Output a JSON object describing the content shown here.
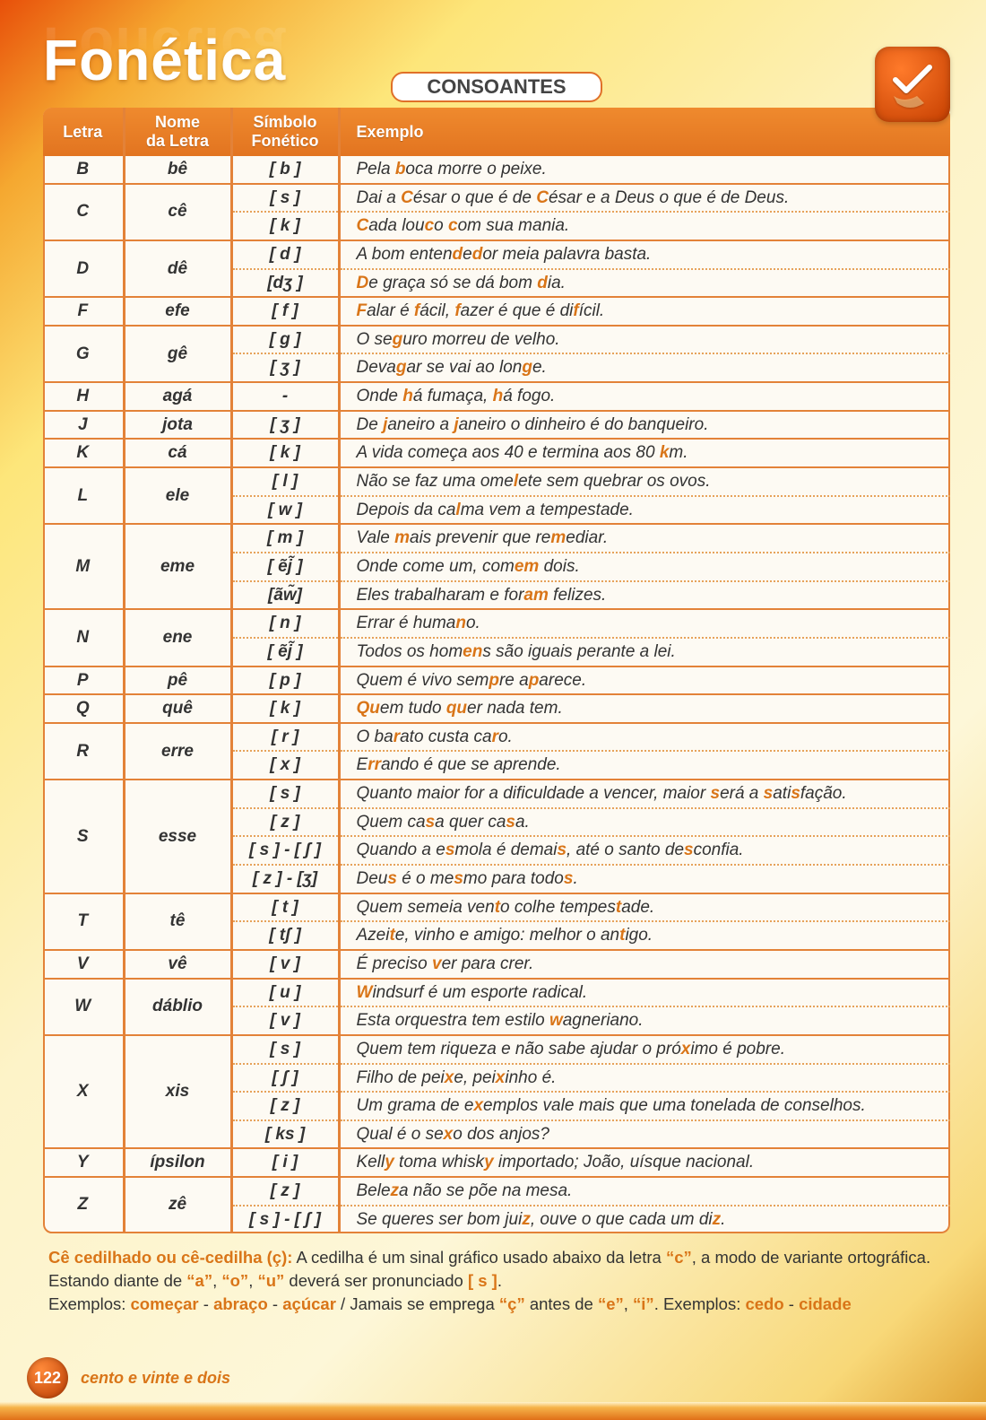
{
  "title": "Fonética",
  "tab": "CONSOANTES",
  "headers": {
    "letra": "Letra",
    "nome": "Nome da Letra",
    "simbolo": "Símbolo Fonético",
    "exemplo": "Exemplo"
  },
  "rows": [
    {
      "letra": "B",
      "nome": "bê",
      "rs": 1,
      "sym": "[ b ]",
      "ex": "Pela <hl>b</hl>oca morre o peixe.",
      "end": "solid"
    },
    {
      "letra": "C",
      "nome": "cê",
      "rs": 2,
      "sym": "[ s ]",
      "ex": "Dai a <hl>C</hl>ésar o que é de <hl>C</hl>ésar e a Deus o que é de Deus.",
      "end": "dashed"
    },
    {
      "sym": "[ k ]",
      "ex": "<hl>C</hl>ada lou<hl>c</hl>o <hl>c</hl>om sua mania.",
      "end": "solid"
    },
    {
      "letra": "D",
      "nome": "dê",
      "rs": 2,
      "sym": "[ d ]",
      "ex": "A bom enten<hl>d</hl>e<hl>d</hl>or meia palavra basta.",
      "end": "dashed"
    },
    {
      "sym": "[dʒ ]",
      "ex": "<hl>D</hl>e graça só se dá bom <hl>d</hl>ia.",
      "end": "solid"
    },
    {
      "letra": "F",
      "nome": "efe",
      "rs": 1,
      "sym": "[ f ]",
      "ex": "<hl>F</hl>alar é <hl>f</hl>ácil, <hl>f</hl>azer é que é di<hl>f</hl>ícil.",
      "end": "solid"
    },
    {
      "letra": "G",
      "nome": "gê",
      "rs": 2,
      "sym": "[ g ]",
      "ex": "O se<hl>g</hl>uro morreu de velho.",
      "end": "dashed"
    },
    {
      "sym": "[ ʒ ]",
      "ex": "Deva<hl>g</hl>ar se vai ao lon<hl>g</hl>e.",
      "end": "solid"
    },
    {
      "letra": "H",
      "nome": "agá",
      "rs": 1,
      "sym": "-",
      "ex": "Onde <hl>h</hl>á fumaça, <hl>h</hl>á fogo.",
      "end": "solid"
    },
    {
      "letra": "J",
      "nome": "jota",
      "rs": 1,
      "sym": "[ ʒ ]",
      "ex": "De <hl>j</hl>aneiro a <hl>j</hl>aneiro o dinheiro é do banqueiro.",
      "end": "solid"
    },
    {
      "letra": "K",
      "nome": "cá",
      "rs": 1,
      "sym": "[ k ]",
      "ex": "A vida começa aos 40 e termina aos 80 <hl>k</hl>m.",
      "end": "solid"
    },
    {
      "letra": "L",
      "nome": "ele",
      "rs": 2,
      "sym": "[ l ]",
      "ex": "Não se faz uma ome<hl>l</hl>ete sem quebrar os ovos.",
      "end": "dashed"
    },
    {
      "sym": "[ w ]",
      "ex": "Depois da ca<hl>l</hl>ma vem a tempestade.",
      "end": "solid"
    },
    {
      "letra": "M",
      "nome": "eme",
      "rs": 3,
      "sym": "[ m ]",
      "ex": "Vale <hl>m</hl>ais prevenir que re<hl>m</hl>ediar.",
      "end": "dashed"
    },
    {
      "sym": "[ ẽj̃ ]",
      "ex": "Onde come um, com<hl>em</hl> dois.",
      "end": "dashed"
    },
    {
      "sym": "[ãw̃]",
      "ex": "Eles trabalharam e for<hl>am</hl> felizes.",
      "end": "solid"
    },
    {
      "letra": "N",
      "nome": "ene",
      "rs": 2,
      "sym": "[ n ]",
      "ex": "Errar é huma<hl>n</hl>o.",
      "end": "dashed"
    },
    {
      "sym": "[ ẽj̃ ]",
      "ex": "Todos os hom<hl>en</hl>s são iguais perante a lei.",
      "end": "solid"
    },
    {
      "letra": "P",
      "nome": "pê",
      "rs": 1,
      "sym": "[ p ]",
      "ex": "Quem é vivo sem<hl>p</hl>re a<hl>p</hl>arece.",
      "end": "solid"
    },
    {
      "letra": "Q",
      "nome": "quê",
      "rs": 1,
      "sym": "[ k ]",
      "ex": "<hl>Qu</hl>em tudo <hl>qu</hl>er nada tem.",
      "end": "solid"
    },
    {
      "letra": "R",
      "nome": "erre",
      "rs": 2,
      "sym": "[ r ]",
      "ex": "O ba<hl>r</hl>ato custa ca<hl>r</hl>o.",
      "end": "dashed"
    },
    {
      "sym": "[ x ]",
      "ex": "E<hl>rr</hl>ando é que se aprende.",
      "end": "solid"
    },
    {
      "letra": "S",
      "nome": "esse",
      "rs": 4,
      "sym": "[ s ]",
      "ex": "Quanto maior for a dificuldade a vencer, maior <hl>s</hl>erá a <hl>s</hl>ati<hl>s</hl>fação.",
      "end": "dashed"
    },
    {
      "sym": "[ z ]",
      "ex": "Quem ca<hl>s</hl>a quer ca<hl>s</hl>a.",
      "end": "dashed"
    },
    {
      "sym": "[ s ] - [ ʃ ]",
      "ex": "Quando a e<hl>s</hl>mola é demai<hl>s</hl>, até o santo de<hl>s</hl>confia.",
      "end": "dashed"
    },
    {
      "sym": "[ z ] - [ʒ]",
      "ex": "Deu<hl>s</hl> é o me<hl>s</hl>mo para todo<hl>s</hl>.",
      "end": "solid"
    },
    {
      "letra": "T",
      "nome": "tê",
      "rs": 2,
      "sym": "[ t ]",
      "ex": "Quem semeia ven<hl>t</hl>o colhe tempes<hl>t</hl>ade.",
      "end": "dashed"
    },
    {
      "sym": "[ tʃ ]",
      "ex": "Azei<hl>t</hl>e, vinho e amigo: melhor o an<hl>t</hl>igo.",
      "end": "solid"
    },
    {
      "letra": "V",
      "nome": "vê",
      "rs": 1,
      "sym": "[ v ]",
      "ex": "É preciso <hl>v</hl>er para crer.",
      "end": "solid"
    },
    {
      "letra": "W",
      "nome": "dáblio",
      "rs": 2,
      "sym": "[ u ]",
      "ex": "<hl>W</hl>indsurf é um esporte radical.",
      "end": "dashed"
    },
    {
      "sym": "[ v ]",
      "ex": "Esta orquestra tem estilo <hl>w</hl>agneriano.",
      "end": "solid"
    },
    {
      "letra": "X",
      "nome": "xis",
      "rs": 4,
      "sym": "[ s ]",
      "ex": "Quem tem riqueza e não sabe ajudar o pró<hl>x</hl>imo é pobre.",
      "end": "dashed"
    },
    {
      "sym": "[ ʃ ]",
      "ex": "Filho de pei<hl>x</hl>e, pei<hl>x</hl>inho é.",
      "end": "dashed"
    },
    {
      "sym": "[ z ]",
      "ex": "Um grama de e<hl>x</hl>emplos vale mais que uma tonelada de conselhos.",
      "end": "dashed"
    },
    {
      "sym": "[ ks ]",
      "ex": "Qual é o se<hl>x</hl>o dos anjos?",
      "end": "solid"
    },
    {
      "letra": "Y",
      "nome": "ípsilon",
      "rs": 1,
      "sym": "[ i ]",
      "ex": "Kell<hl>y</hl> toma whisk<hl>y</hl> importado; João, uísque nacional.",
      "end": "solid"
    },
    {
      "letra": "Z",
      "nome": "zê",
      "rs": 2,
      "sym": "[ z ]",
      "ex": "Bele<hl>z</hl>a não se põe na mesa.",
      "end": "dashed"
    },
    {
      "sym": "[ s ] - [ ʃ ]",
      "ex": "Se queres ser bom jui<hl>z</hl>, ouve o que cada um di<hl>z</hl>.",
      "end": "last"
    }
  ],
  "note": {
    "line1": "<b>Cê cedilhado ou cê-cedilha (ç):</b> A cedilha é um sinal gráfico usado abaixo da letra <span class='qc'>“c”</span>, a modo de variante ortográfica. Estando diante de <span class='qc'>“a”</span>, <span class='qc'>“o”</span>, <span class='qc'>“u”</span> deverá ser pronunciado <b>[ s ]</b>.",
    "line2": "Exemplos: <b>come<span class='qc'>ç</span>ar</b> - <b>abra<span class='qc'>ç</span>o</b> - <b>a<span class='qc'>ç</span>úcar</b> / Jamais se emprega <span class='qc'>“ç”</span> antes de <span class='qc'>“e”</span>, <span class='qc'>“i”</span>. Exemplos: <b>cedo</b> - <b>cidade</b>"
  },
  "page": {
    "num": "122",
    "label": "cento e vinte e dois"
  },
  "colors": {
    "accent": "#d97518",
    "border": "#e38238",
    "bg": "#fdfaf3"
  }
}
